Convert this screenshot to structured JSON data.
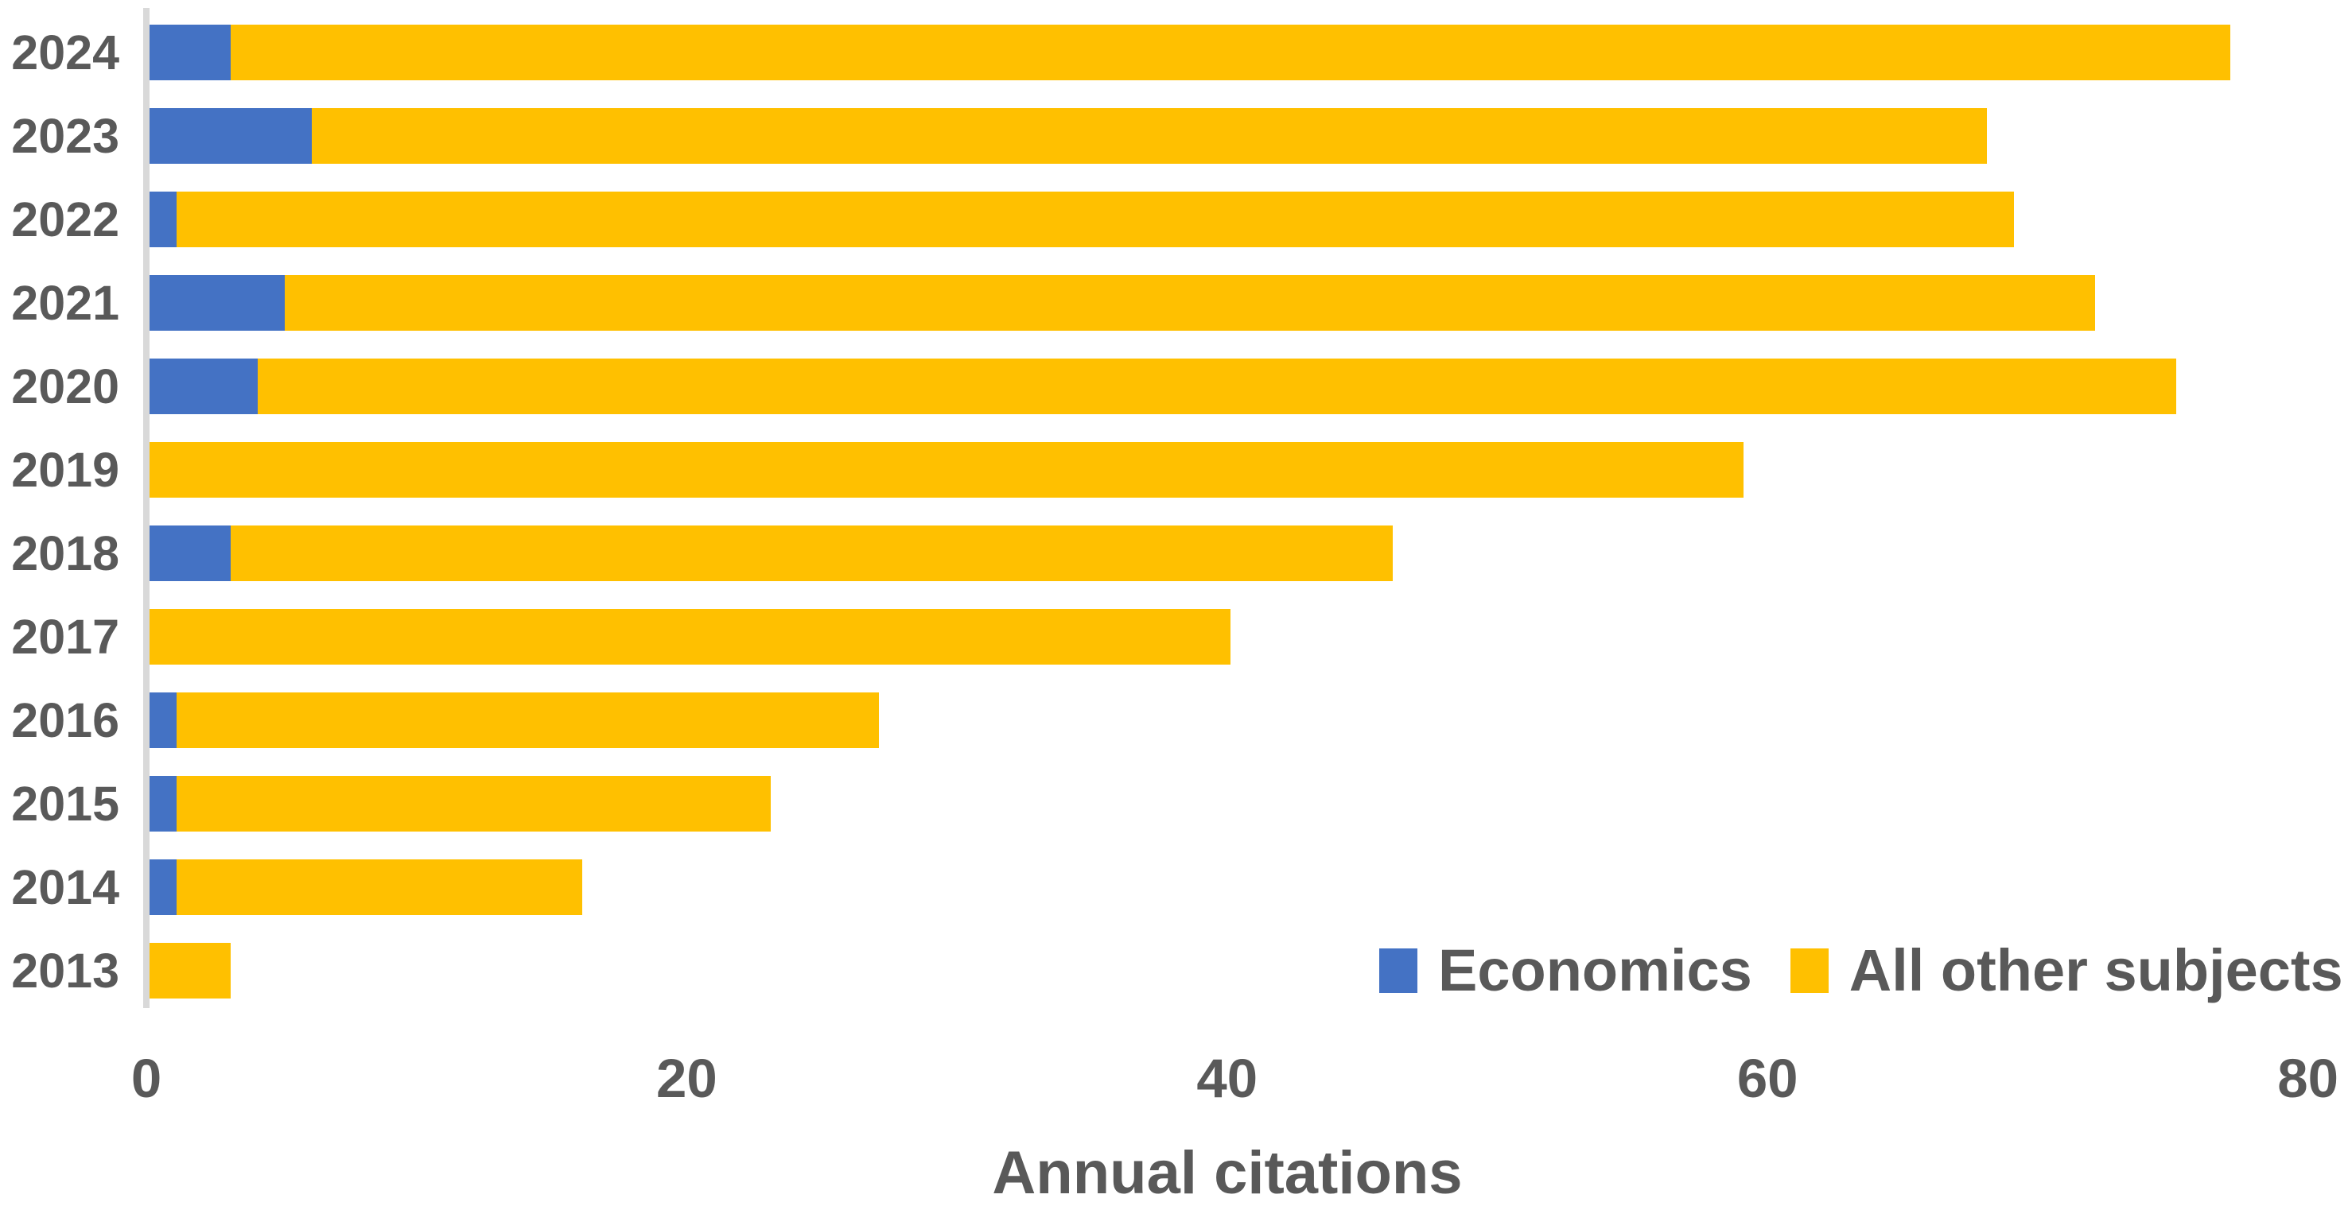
{
  "chart_data": {
    "type": "bar",
    "orientation": "horizontal",
    "stacked": true,
    "title": "",
    "xlabel": "Annual citations",
    "ylabel": "",
    "xlim": [
      0,
      80
    ],
    "x_ticks": [
      0,
      20,
      40,
      60,
      80
    ],
    "grid": false,
    "legend_position": "inside-bottom-right",
    "categories": [
      "2024",
      "2023",
      "2022",
      "2021",
      "2020",
      "2019",
      "2018",
      "2017",
      "2016",
      "2015",
      "2014",
      "2013"
    ],
    "series": [
      {
        "name": "Economics",
        "color": "#4472C4",
        "values": [
          3,
          6,
          1,
          5,
          4,
          0,
          3,
          0,
          1,
          1,
          1,
          0
        ]
      },
      {
        "name": "All other subjects",
        "color": "#FFC000",
        "values": [
          74,
          62,
          68,
          67,
          71,
          59,
          43,
          40,
          26,
          22,
          15,
          3
        ]
      }
    ],
    "stacked_totals": [
      77,
      68,
      69,
      72,
      75,
      59,
      46,
      40,
      27,
      23,
      16,
      3
    ]
  },
  "axis": {
    "tick_labels": [
      "0",
      "20",
      "40",
      "60",
      "80"
    ],
    "title": "Annual citations"
  },
  "legend": {
    "items": [
      {
        "label": "Economics",
        "color": "#4472C4"
      },
      {
        "label": "All other subjects",
        "color": "#FFC000"
      }
    ]
  },
  "colors": {
    "economics": "#4472C4",
    "all_other_subjects": "#FFC000",
    "text": "#595959",
    "axis_line": "#d9d9d9",
    "background": "#ffffff"
  }
}
